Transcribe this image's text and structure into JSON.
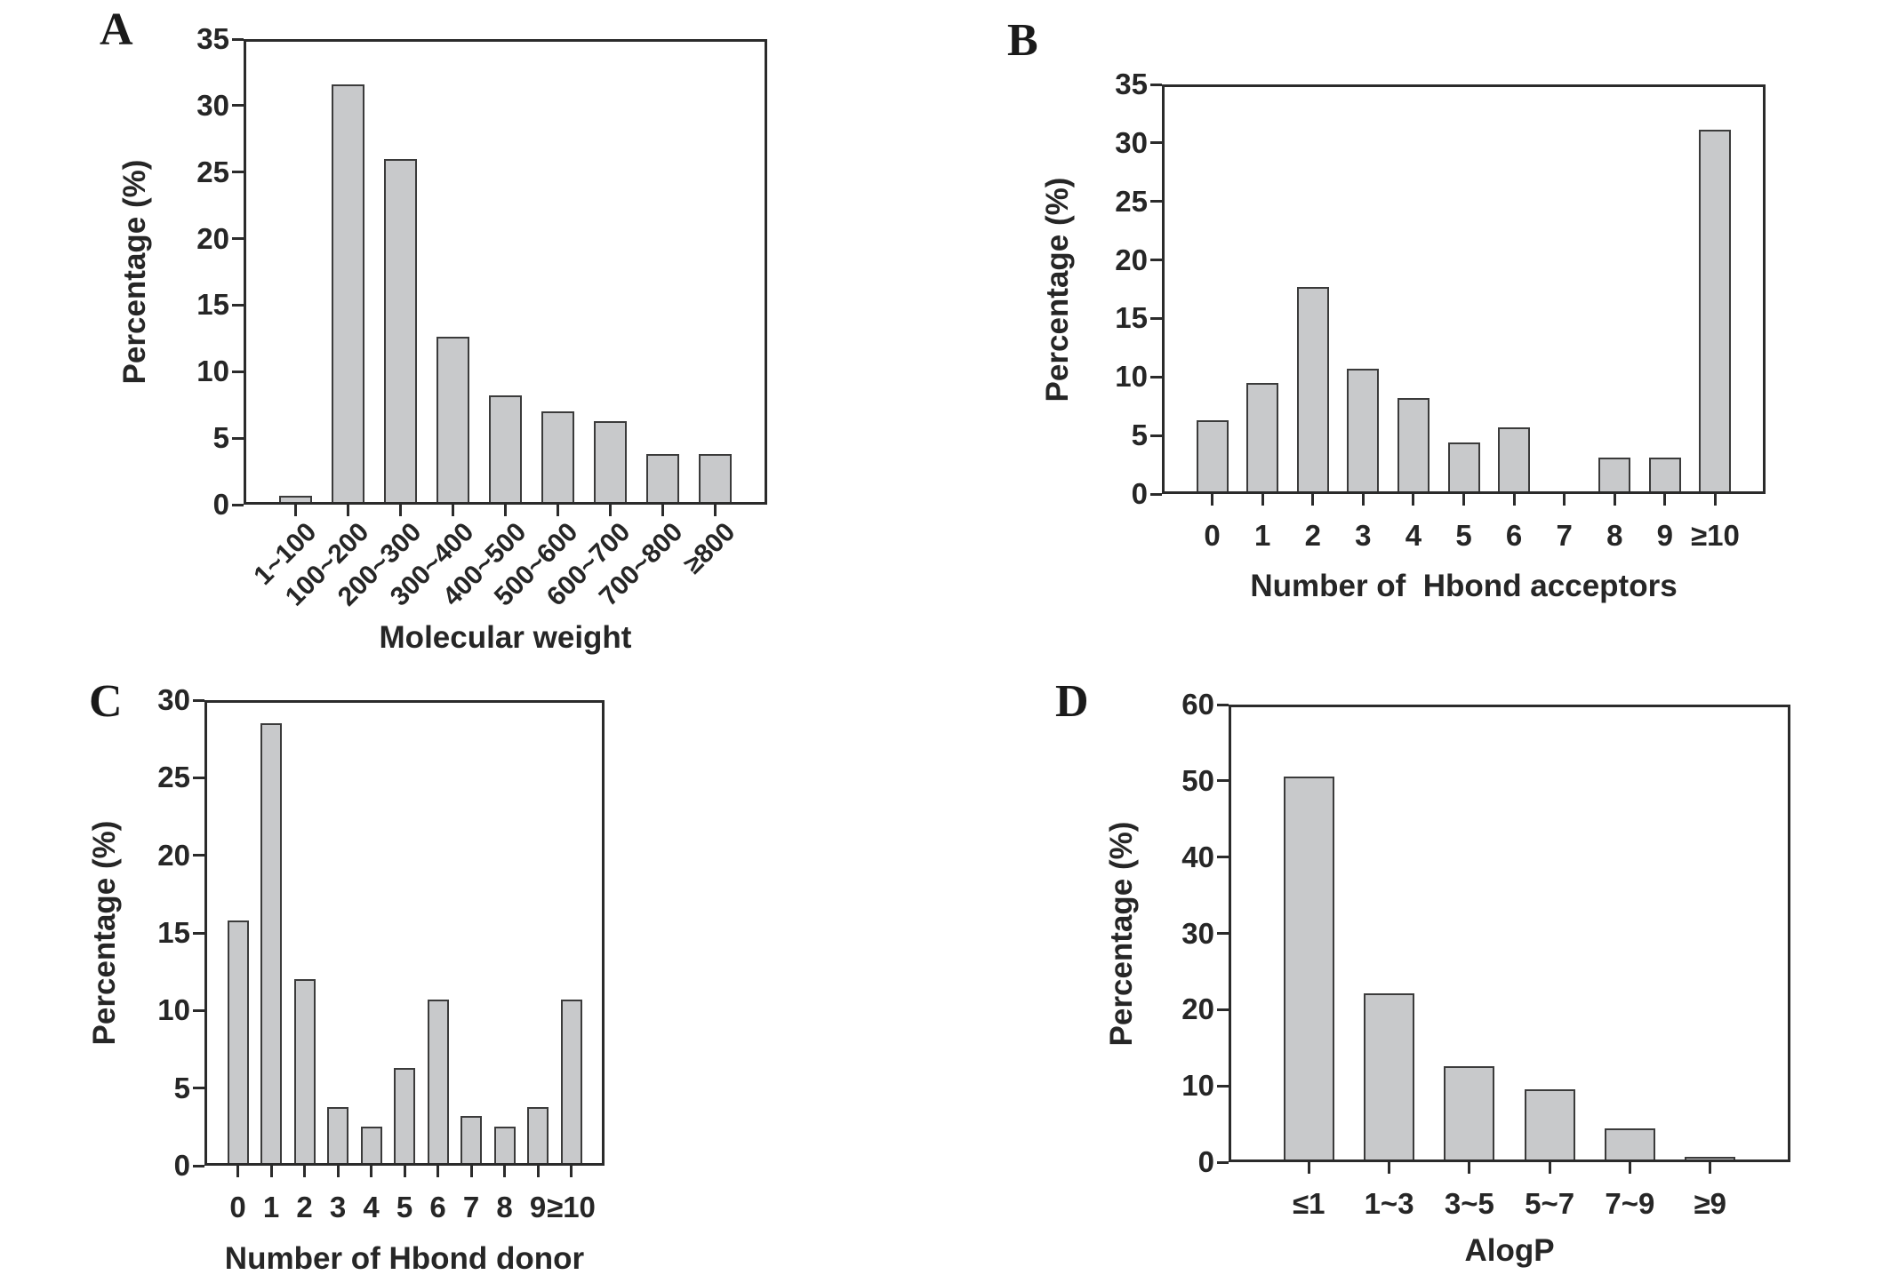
{
  "figure": {
    "background": "#ffffff",
    "text_color": "#262626",
    "axis_color": "#2b2b2b"
  },
  "chart_data": [
    {
      "type": "bar",
      "panel_label": "A",
      "categories": [
        "1~100",
        "100~200",
        "200~300",
        "300~400",
        "400~500",
        "500~600",
        "600~700",
        "700~800",
        "≥800"
      ],
      "values": [
        0.7,
        31.6,
        26.0,
        12.6,
        8.2,
        7.0,
        6.3,
        3.8,
        3.8
      ],
      "xlabel": "Molecular weight",
      "ylabel": "Percentage (%)",
      "ylim": [
        0,
        35
      ],
      "ytick_step": 5,
      "x_tick_rotation_deg": 45,
      "grid": false,
      "legend": false,
      "bar_fill": "#c8c9cb",
      "bar_border": "#3b3b3b"
    },
    {
      "type": "bar",
      "panel_label": "B",
      "categories": [
        "0",
        "1",
        "2",
        "3",
        "4",
        "5",
        "6",
        "7",
        "8",
        "9",
        "≥10"
      ],
      "values": [
        6.3,
        9.5,
        17.7,
        10.7,
        8.2,
        4.4,
        5.7,
        0,
        3.1,
        3.1,
        31.1
      ],
      "xlabel": "Number of  Hbond acceptors",
      "ylabel": "Percentage (%)",
      "ylim": [
        0,
        35
      ],
      "ytick_step": 5,
      "x_tick_rotation_deg": 0,
      "grid": false,
      "legend": false,
      "bar_fill": "#c8c9cb",
      "bar_border": "#3b3b3b"
    },
    {
      "type": "bar",
      "panel_label": "C",
      "categories": [
        "0",
        "1",
        "2",
        "3",
        "4",
        "5",
        "6",
        "7",
        "8",
        "9",
        "≥10"
      ],
      "values": [
        15.8,
        28.5,
        12.0,
        3.8,
        2.5,
        6.3,
        10.7,
        3.2,
        2.5,
        3.8,
        10.7
      ],
      "xlabel": "Number of Hbond donor",
      "ylabel": "Percentage (%)",
      "ylim": [
        0,
        30
      ],
      "ytick_step": 5,
      "x_tick_rotation_deg": 0,
      "grid": false,
      "legend": false,
      "bar_fill": "#c8c9cb",
      "bar_border": "#3b3b3b"
    },
    {
      "type": "bar",
      "panel_label": "D",
      "categories": [
        "≤1",
        "1~3",
        "3~5",
        "5~7",
        "7~9",
        "≥9"
      ],
      "values": [
        50.6,
        22.1,
        12.6,
        9.5,
        4.4,
        0.7
      ],
      "xlabel": "AlogP",
      "ylabel": "Percentage (%)",
      "ylim": [
        0,
        60
      ],
      "ytick_step": 10,
      "x_tick_rotation_deg": 0,
      "grid": false,
      "legend": false,
      "bar_fill": "#c8c9cb",
      "bar_border": "#3b3b3b"
    }
  ]
}
